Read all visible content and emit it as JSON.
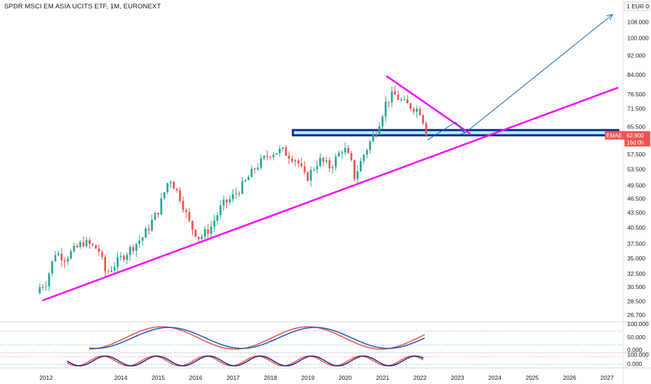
{
  "chart_title": "SPDR MSCI EM ASIA UCITS ETF, 1M, EURONEXT",
  "currency_box": "1  EUR 0",
  "price_label": {
    "ticker": "EMAE",
    "price": "62.900",
    "countdown": "16d 0h"
  },
  "colors": {
    "up": "#26a69a",
    "down": "#ef5350",
    "trend": "#ff00ff",
    "zone_fill": "#b2ebf2",
    "zone_border": "#0d2b8e",
    "arrow": "#1565c0",
    "stoch_k": "#1f5fbf",
    "stoch_d": "#ef5350",
    "price_label_bg": "#ef5350"
  },
  "chart_data": {
    "type": "candlestick",
    "y_scale": "log",
    "y_ticks": [
      "108.000",
      "100.000",
      "92.000",
      "84.000",
      "76.500",
      "71.500",
      "65.500",
      "57.500",
      "53.500",
      "49.500",
      "46.500",
      "43.500",
      "40.500",
      "37.500",
      "35.000",
      "32.500",
      "30.500",
      "28.500",
      "26.700"
    ],
    "x_ticks": [
      "2012",
      "2014",
      "2015",
      "2016",
      "2017",
      "2018",
      "2019",
      "2020",
      "2021",
      "2022",
      "2023",
      "2024",
      "2025",
      "2026",
      "2027"
    ],
    "close_anchors": [
      {
        "date": "2011.83",
        "close": 30.5
      },
      {
        "date": "2012.0",
        "close": 31.2
      },
      {
        "date": "2012.25",
        "close": 36.0
      },
      {
        "date": "2012.5",
        "close": 35.0
      },
      {
        "date": "2013.0",
        "close": 37.8
      },
      {
        "date": "2013.4",
        "close": 36.5
      },
      {
        "date": "2013.6",
        "close": 32.5
      },
      {
        "date": "2014.0",
        "close": 35.0
      },
      {
        "date": "2014.6",
        "close": 38.8
      },
      {
        "date": "2015.0",
        "close": 44.0
      },
      {
        "date": "2015.3",
        "close": 51.5
      },
      {
        "date": "2015.6",
        "close": 46.5
      },
      {
        "date": "2015.85",
        "close": 41.0
      },
      {
        "date": "2016.1",
        "close": 38.5
      },
      {
        "date": "2016.4",
        "close": 40.5
      },
      {
        "date": "2016.7",
        "close": 45.0
      },
      {
        "date": "2016.95",
        "close": 46.5
      },
      {
        "date": "2017.3",
        "close": 50.0
      },
      {
        "date": "2017.6",
        "close": 54.0
      },
      {
        "date": "2018.0",
        "close": 57.8
      },
      {
        "date": "2018.3",
        "close": 58.5
      },
      {
        "date": "2018.7",
        "close": 56.0
      },
      {
        "date": "2018.95",
        "close": 51.0
      },
      {
        "date": "2019.3",
        "close": 56.0
      },
      {
        "date": "2019.6",
        "close": 54.0
      },
      {
        "date": "2019.95",
        "close": 59.5
      },
      {
        "date": "2020.15",
        "close": 55.5
      },
      {
        "date": "2020.25",
        "close": 51.5
      },
      {
        "date": "2020.5",
        "close": 57.5
      },
      {
        "date": "2020.85",
        "close": 65.0
      },
      {
        "date": "2021.1",
        "close": 74.0
      },
      {
        "date": "2021.3",
        "close": 76.5
      },
      {
        "date": "2021.6",
        "close": 73.0
      },
      {
        "date": "2021.9",
        "close": 71.5
      },
      {
        "date": "2022.05",
        "close": 70.0
      },
      {
        "date": "2022.15",
        "close": 62.9
      }
    ],
    "annotations": {
      "support_trendline": [
        {
          "date": "2011.9",
          "price": 28.6
        },
        {
          "date": "2027.3",
          "price": 79.0
        }
      ],
      "resistance_trendline": [
        {
          "date": "2021.1",
          "price": 83.5
        },
        {
          "date": "2023.35",
          "price": 63.3
        }
      ],
      "zone": {
        "low": 62.9,
        "high": 64.5,
        "from": "2018.6",
        "to": "2027.3"
      },
      "arrow_projection": [
        {
          "date": "2022.2",
          "price": 61.5
        },
        {
          "date": "2022.95",
          "price": 67.0
        },
        {
          "date": "2023.2",
          "price": 63.6
        },
        {
          "date": "2027.15",
          "price": 112.0
        }
      ]
    },
    "stoch_top_ticks": [
      "100.000",
      "50.000",
      "0.000"
    ],
    "stoch_bottom_ticks": [
      "100.000",
      "0.000"
    ]
  }
}
